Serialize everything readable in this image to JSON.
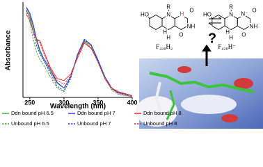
{
  "chart_data": {
    "type": "line",
    "x_label": "Wavelength (nm)",
    "y_label": "Absorbance",
    "x": [
      245,
      250,
      255,
      260,
      265,
      270,
      280,
      290,
      300,
      310,
      320,
      330,
      340,
      350,
      360,
      370,
      380,
      400
    ],
    "xlim": [
      240,
      400
    ],
    "xticks": [
      250,
      300,
      350,
      400
    ],
    "ylim": [
      0,
      1
    ],
    "series": [
      {
        "name": "Ddn bound pH 6.5",
        "color": "#3fae3f",
        "dash": false,
        "values": [
          0.95,
          0.88,
          0.75,
          0.6,
          0.48,
          0.4,
          0.28,
          0.15,
          0.1,
          0.22,
          0.45,
          0.6,
          0.55,
          0.38,
          0.2,
          0.1,
          0.05,
          0.02
        ]
      },
      {
        "name": "Ddn bound pH 7",
        "color": "#3a3ad0",
        "dash": false,
        "values": [
          0.96,
          0.9,
          0.78,
          0.62,
          0.5,
          0.42,
          0.3,
          0.16,
          0.1,
          0.22,
          0.46,
          0.62,
          0.56,
          0.4,
          0.22,
          0.1,
          0.05,
          0.02
        ]
      },
      {
        "name": "Ddn bound pH 8",
        "color": "#e0303a",
        "dash": false,
        "values": [
          0.92,
          0.85,
          0.7,
          0.62,
          0.6,
          0.5,
          0.32,
          0.2,
          0.18,
          0.25,
          0.42,
          0.58,
          0.52,
          0.38,
          0.2,
          0.1,
          0.06,
          0.02
        ]
      },
      {
        "name": "Unbound pH 6.5",
        "color": "#3fae3f",
        "dash": true,
        "values": [
          0.9,
          0.8,
          0.62,
          0.48,
          0.4,
          0.35,
          0.22,
          0.1,
          0.06,
          0.2,
          0.45,
          0.6,
          0.55,
          0.38,
          0.2,
          0.08,
          0.03,
          0.01
        ]
      },
      {
        "name": "Unbound pH 7",
        "color": "#3a3ad0",
        "dash": true,
        "values": [
          0.93,
          0.85,
          0.7,
          0.55,
          0.46,
          0.4,
          0.26,
          0.12,
          0.07,
          0.21,
          0.46,
          0.61,
          0.56,
          0.38,
          0.2,
          0.09,
          0.04,
          0.01
        ]
      },
      {
        "name": "Unbound pH 8",
        "color": "#e0303a",
        "dash": true,
        "values": [
          0.88,
          0.82,
          0.7,
          0.62,
          0.58,
          0.48,
          0.3,
          0.18,
          0.14,
          0.23,
          0.44,
          0.59,
          0.53,
          0.37,
          0.2,
          0.09,
          0.04,
          0.01
        ]
      }
    ]
  },
  "structures": [
    {
      "atoms": [
        "HO",
        "N",
        "R",
        "H",
        "O",
        "NH",
        "O",
        "H",
        "H"
      ],
      "formula": "F₄₂₀H₂"
    },
    {
      "atoms": [
        "HO",
        "N",
        "R",
        "N⁻",
        "O",
        "NH",
        "O",
        "H",
        "H"
      ],
      "formula": "F₄₂₀H⁻"
    }
  ],
  "question": "?"
}
